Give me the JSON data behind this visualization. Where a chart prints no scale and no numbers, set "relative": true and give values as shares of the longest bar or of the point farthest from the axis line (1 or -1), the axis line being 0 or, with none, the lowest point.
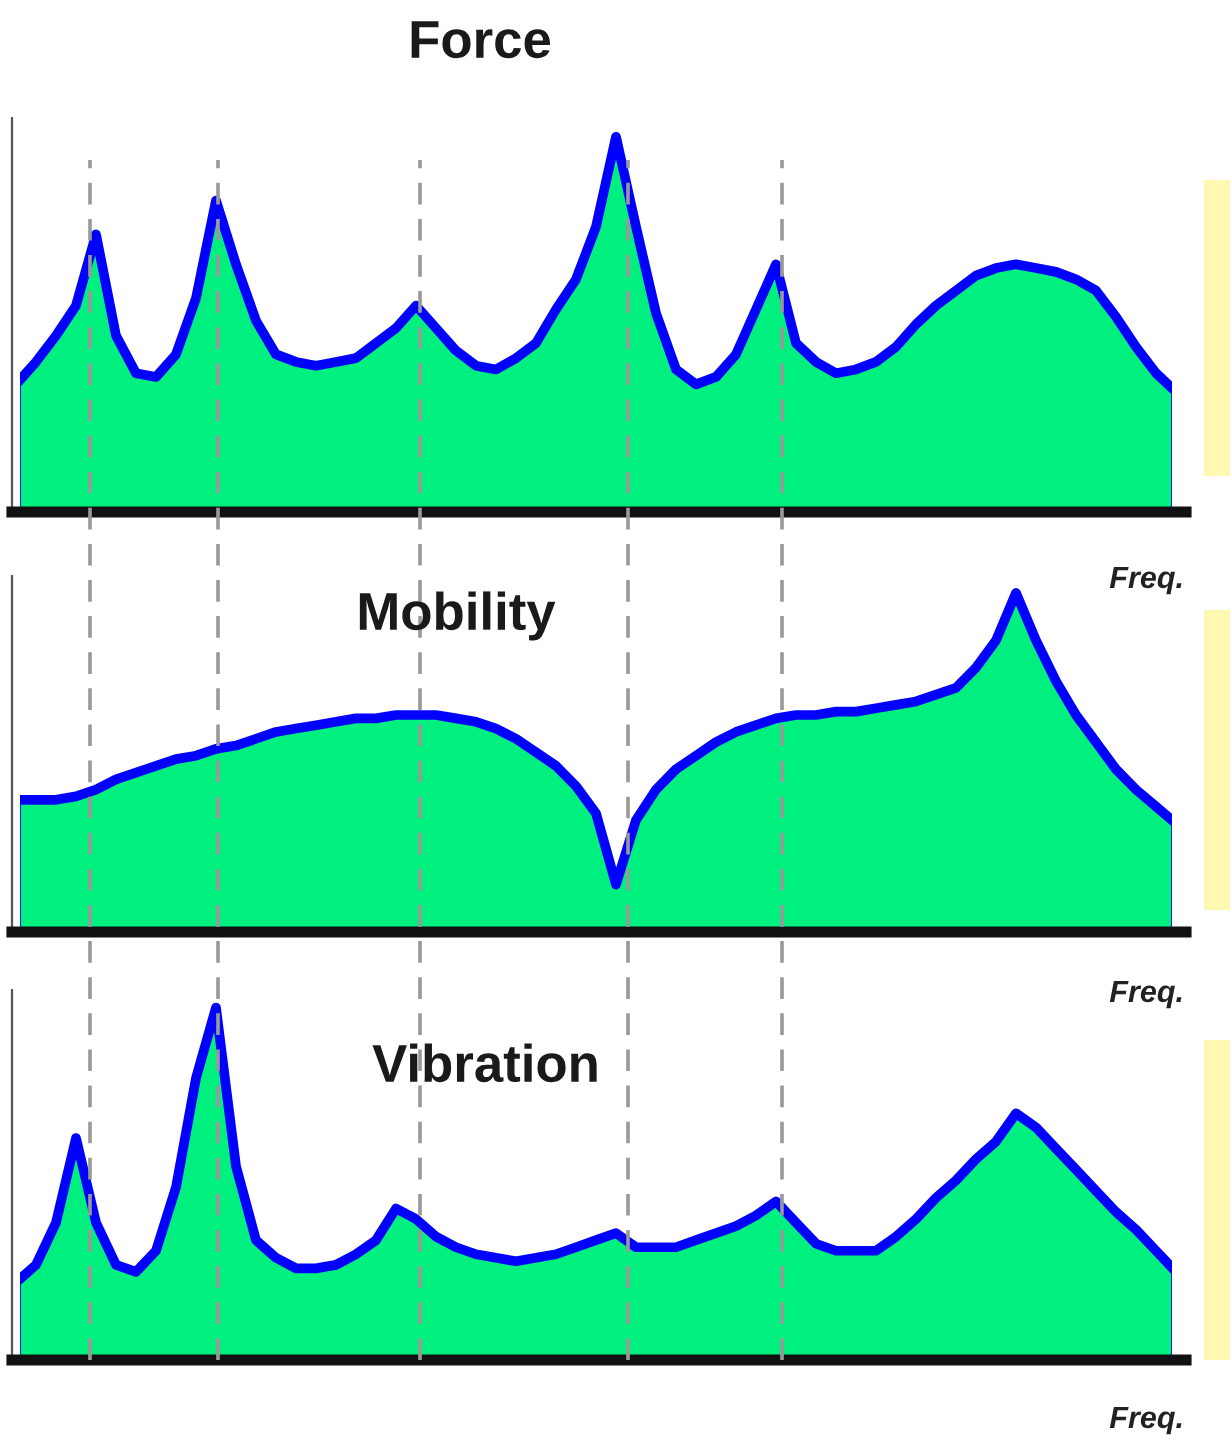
{
  "chart_data": [
    {
      "type": "area",
      "title": "Force",
      "xlabel": "Freq.",
      "relative": true,
      "tick_labels": false,
      "categories": [
        null,
        null,
        null,
        null,
        null,
        null,
        null,
        null,
        null,
        null,
        null,
        null,
        null,
        null,
        null,
        null,
        null,
        null,
        null,
        null,
        null,
        null,
        null,
        null,
        null,
        null,
        null,
        null,
        null,
        null,
        null,
        null,
        null,
        null,
        null,
        null,
        null,
        null,
        null,
        null,
        null,
        null,
        null,
        null,
        null,
        null,
        null,
        null,
        null,
        null,
        null,
        null,
        null,
        null,
        null,
        null,
        null,
        null,
        null
      ],
      "series": [
        {
          "color": "#0000ff",
          "values": [
            0.34,
            0.4,
            0.47,
            0.55,
            0.74,
            0.47,
            0.37,
            0.36,
            0.42,
            0.57,
            0.83,
            0.66,
            0.51,
            0.42,
            0.4,
            0.39,
            0.4,
            0.41,
            0.45,
            0.49,
            0.55,
            0.49,
            0.43,
            0.39,
            0.38,
            0.41,
            0.45,
            0.54,
            0.62,
            0.76,
            1,
            0.76,
            0.53,
            0.38,
            0.34,
            0.36,
            0.42,
            0.54,
            0.66,
            0.45,
            0.4,
            0.37,
            0.38,
            0.4,
            0.44,
            0.5,
            0.55,
            0.59,
            0.63,
            0.65,
            0.66,
            0.65,
            0.64,
            0.62,
            0.59,
            0.52,
            0.44,
            0.37,
            0.32
          ]
        }
      ]
    },
    {
      "type": "area",
      "title": "Mobility",
      "xlabel": "Freq.",
      "relative": true,
      "tick_labels": false,
      "categories": [
        null,
        null,
        null,
        null,
        null,
        null,
        null,
        null,
        null,
        null,
        null,
        null,
        null,
        null,
        null,
        null,
        null,
        null,
        null,
        null,
        null,
        null,
        null,
        null,
        null,
        null,
        null,
        null,
        null,
        null,
        null,
        null,
        null,
        null,
        null,
        null,
        null,
        null,
        null,
        null,
        null,
        null,
        null,
        null,
        null,
        null,
        null,
        null,
        null,
        null,
        null,
        null,
        null,
        null,
        null,
        null,
        null,
        null,
        null
      ],
      "series": [
        {
          "color": "#0000ff",
          "values": [
            0.39,
            0.39,
            0.39,
            0.4,
            0.42,
            0.45,
            0.47,
            0.49,
            0.51,
            0.52,
            0.54,
            0.55,
            0.57,
            0.59,
            0.6,
            0.61,
            0.62,
            0.63,
            0.63,
            0.64,
            0.64,
            0.64,
            0.63,
            0.62,
            0.6,
            0.57,
            0.53,
            0.49,
            0.43,
            0.35,
            0.14,
            0.33,
            0.42,
            0.48,
            0.52,
            0.56,
            0.59,
            0.61,
            0.63,
            0.64,
            0.64,
            0.65,
            0.65,
            0.66,
            0.67,
            0.68,
            0.7,
            0.72,
            0.78,
            0.86,
            1,
            0.86,
            0.74,
            0.64,
            0.56,
            0.48,
            0.42,
            0.37,
            0.32
          ]
        }
      ]
    },
    {
      "type": "area",
      "title": "Vibration",
      "xlabel": "Freq.",
      "relative": true,
      "tick_labels": false,
      "categories": [
        null,
        null,
        null,
        null,
        null,
        null,
        null,
        null,
        null,
        null,
        null,
        null,
        null,
        null,
        null,
        null,
        null,
        null,
        null,
        null,
        null,
        null,
        null,
        null,
        null,
        null,
        null,
        null,
        null,
        null,
        null,
        null,
        null,
        null,
        null,
        null,
        null,
        null,
        null,
        null,
        null,
        null,
        null,
        null,
        null,
        null,
        null,
        null,
        null,
        null,
        null,
        null,
        null,
        null,
        null,
        null,
        null,
        null,
        null
      ],
      "series": [
        {
          "color": "#0000ff",
          "values": [
            0.22,
            0.27,
            0.39,
            0.63,
            0.39,
            0.27,
            0.25,
            0.31,
            0.49,
            0.8,
            1,
            0.55,
            0.34,
            0.29,
            0.26,
            0.26,
            0.27,
            0.3,
            0.34,
            0.43,
            0.4,
            0.35,
            0.32,
            0.3,
            0.29,
            0.28,
            0.29,
            0.3,
            0.32,
            0.34,
            0.36,
            0.32,
            0.32,
            0.32,
            0.34,
            0.36,
            0.38,
            0.41,
            0.45,
            0.39,
            0.33,
            0.31,
            0.31,
            0.31,
            0.35,
            0.4,
            0.46,
            0.51,
            0.57,
            0.62,
            0.7,
            0.66,
            0.6,
            0.54,
            0.48,
            0.42,
            0.37,
            0.31,
            0.25
          ]
        }
      ]
    }
  ]
}
